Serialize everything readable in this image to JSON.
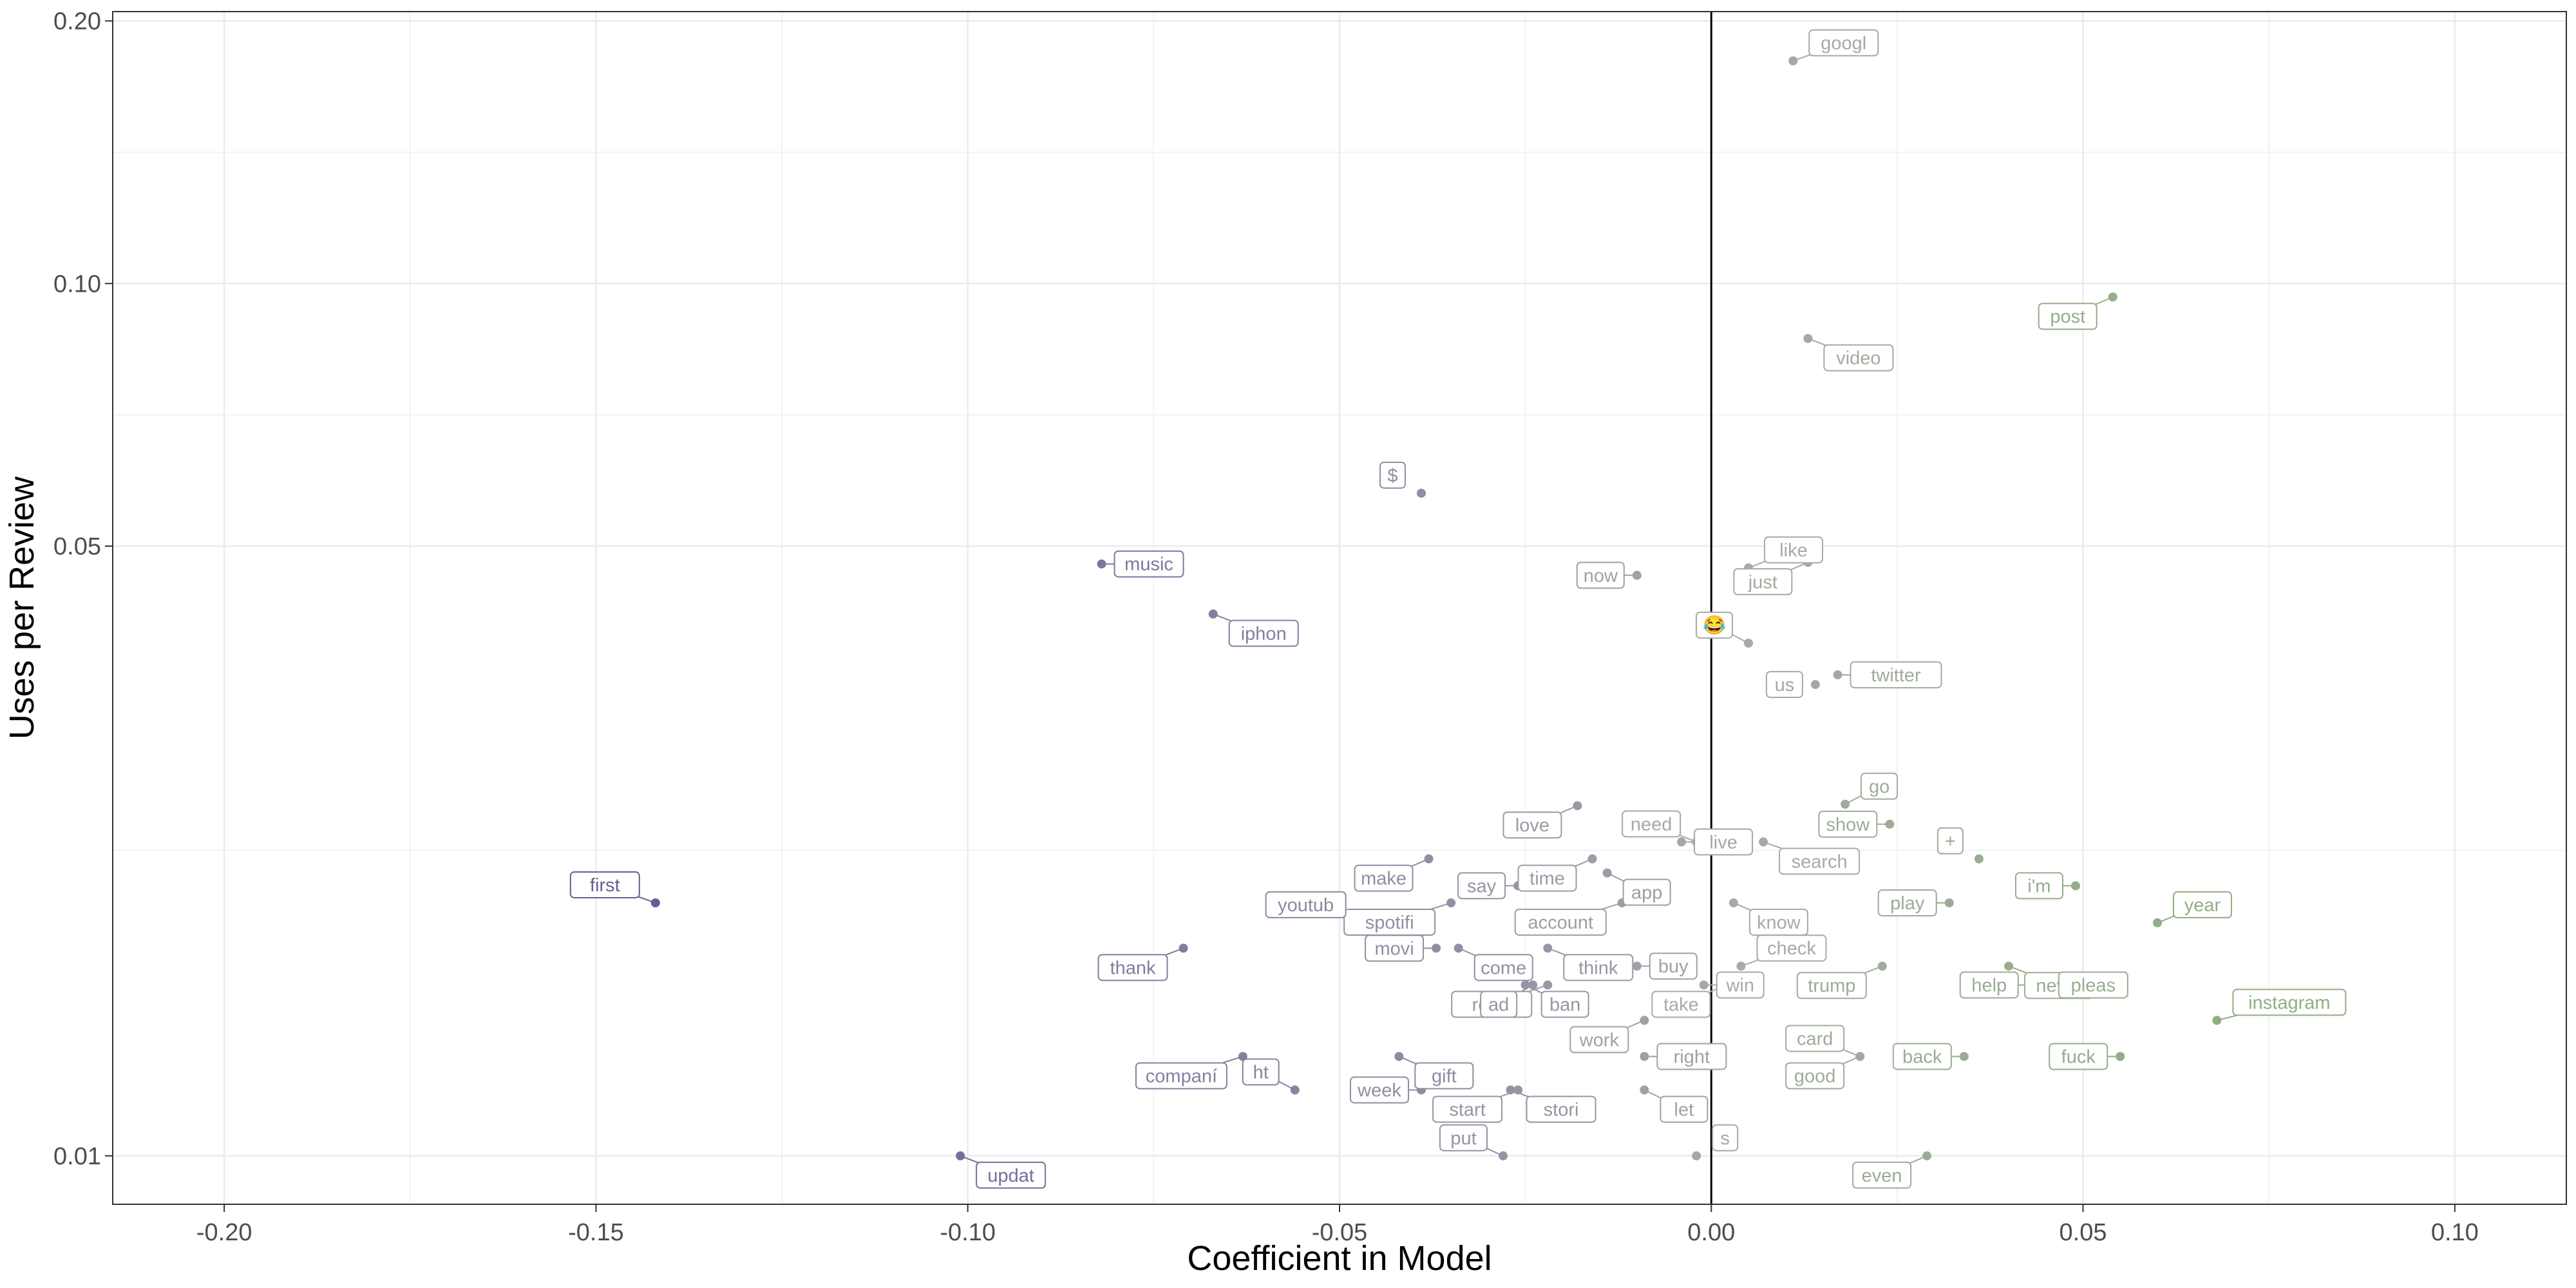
{
  "chart_data": {
    "type": "scatter",
    "title": "",
    "xlabel": "Coefficient in Model",
    "ylabel": "Uses per Review",
    "xlim": [
      -0.215,
      0.115
    ],
    "ylim": [
      0.0088,
      0.205
    ],
    "y_scale": "log",
    "grid": true,
    "legend": "none",
    "zero_line": 0,
    "x_ticks": [
      -0.2,
      -0.15,
      -0.1,
      -0.05,
      0.0,
      0.05,
      0.1
    ],
    "x_tick_labels": [
      "-0.20",
      "-0.15",
      "-0.10",
      "-0.05",
      "0.00",
      "0.05",
      "0.10"
    ],
    "y_ticks": [
      0.01,
      0.05,
      0.1,
      0.2
    ],
    "y_tick_labels": [
      "0.01",
      "0.05",
      "0.10",
      "0.20"
    ],
    "y_minor_ticks": [
      0.0224,
      0.0707,
      0.1414
    ],
    "x_minor_ticks": [
      -0.175,
      -0.125,
      -0.075,
      -0.025,
      0.025,
      0.075
    ],
    "colors": {
      "negative": "#6b5b95",
      "neutral": "#aaaaaa",
      "positive": "#8fae84",
      "zero_line": "#000000"
    },
    "points": [
      {
        "word": "googl",
        "x": 0.011,
        "y": 0.18
      },
      {
        "word": "post",
        "x": 0.054,
        "y": 0.0965
      },
      {
        "word": "video",
        "x": 0.013,
        "y": 0.0865
      },
      {
        "word": "$",
        "x": -0.039,
        "y": 0.0575
      },
      {
        "word": "music",
        "x": -0.082,
        "y": 0.0477
      },
      {
        "word": "now",
        "x": -0.01,
        "y": 0.0463
      },
      {
        "word": "like",
        "x": 0.005,
        "y": 0.0472
      },
      {
        "word": "just",
        "x": 0.013,
        "y": 0.0479
      },
      {
        "word": "iphon",
        "x": -0.067,
        "y": 0.0418
      },
      {
        "word": "😂",
        "x": 0.005,
        "y": 0.0387
      },
      {
        "word": "twitter",
        "x": 0.017,
        "y": 0.0356
      },
      {
        "word": "us",
        "x": 0.014,
        "y": 0.0347
      },
      {
        "word": "go",
        "x": 0.018,
        "y": 0.0253
      },
      {
        "word": "love",
        "x": -0.018,
        "y": 0.0252
      },
      {
        "word": "search",
        "x": 0.007,
        "y": 0.0229
      },
      {
        "word": "need",
        "x": -0.002,
        "y": 0.0229
      },
      {
        "word": "live",
        "x": -0.004,
        "y": 0.0229
      },
      {
        "word": "show",
        "x": 0.024,
        "y": 0.024
      },
      {
        "word": "time",
        "x": -0.016,
        "y": 0.0219
      },
      {
        "word": "make",
        "x": -0.038,
        "y": 0.0219
      },
      {
        "word": "app",
        "x": -0.014,
        "y": 0.0211
      },
      {
        "word": "+",
        "x": 0.036,
        "y": 0.0219
      },
      {
        "word": "say",
        "x": -0.026,
        "y": 0.0204
      },
      {
        "word": "i'm",
        "x": 0.049,
        "y": 0.0204
      },
      {
        "word": "account",
        "x": -0.012,
        "y": 0.0195
      },
      {
        "word": "spotifi",
        "x": -0.035,
        "y": 0.0195
      },
      {
        "word": "know",
        "x": 0.003,
        "y": 0.0195
      },
      {
        "word": "first",
        "x": -0.142,
        "y": 0.0195
      },
      {
        "word": "youtub",
        "x": -0.047,
        "y": 0.0185
      },
      {
        "word": "play",
        "x": 0.032,
        "y": 0.0195
      },
      {
        "word": "year",
        "x": 0.06,
        "y": 0.0185
      },
      {
        "word": "thank",
        "x": -0.071,
        "y": 0.0173
      },
      {
        "word": "come",
        "x": -0.034,
        "y": 0.0173
      },
      {
        "word": "movi",
        "x": -0.037,
        "y": 0.0173
      },
      {
        "word": "buy",
        "x": -0.01,
        "y": 0.0165
      },
      {
        "word": "think",
        "x": -0.022,
        "y": 0.0173
      },
      {
        "word": "check",
        "x": 0.004,
        "y": 0.0165
      },
      {
        "word": "trump",
        "x": 0.023,
        "y": 0.0165
      },
      {
        "word": "never",
        "x": 0.04,
        "y": 0.0165
      },
      {
        "word": "realli",
        "x": -0.022,
        "y": 0.0157
      },
      {
        "word": "win",
        "x": -0.001,
        "y": 0.0157
      },
      {
        "word": "pleas",
        "x": 0.045,
        "y": 0.0157
      },
      {
        "word": "instagram",
        "x": 0.068,
        "y": 0.0143
      },
      {
        "word": "ban",
        "x": -0.025,
        "y": 0.0157
      },
      {
        "word": "ad",
        "x": -0.024,
        "y": 0.0157
      },
      {
        "word": "take",
        "x": 0.002,
        "y": 0.0157
      },
      {
        "word": "help",
        "x": 0.043,
        "y": 0.0157
      },
      {
        "word": "back",
        "x": 0.034,
        "y": 0.013
      },
      {
        "word": "work",
        "x": -0.009,
        "y": 0.0143
      },
      {
        "word": "companí",
        "x": -0.063,
        "y": 0.013
      },
      {
        "word": "gift",
        "x": -0.042,
        "y": 0.013
      },
      {
        "word": "card",
        "x": 0.02,
        "y": 0.013
      },
      {
        "word": "right",
        "x": -0.009,
        "y": 0.013
      },
      {
        "word": "fuck",
        "x": 0.055,
        "y": 0.013
      },
      {
        "word": "good",
        "x": 0.02,
        "y": 0.013
      },
      {
        "word": "start",
        "x": -0.026,
        "y": 0.0119
      },
      {
        "word": "stori",
        "x": -0.027,
        "y": 0.0119
      },
      {
        "word": "ht",
        "x": -0.056,
        "y": 0.0119
      },
      {
        "word": "week",
        "x": -0.039,
        "y": 0.0119
      },
      {
        "word": "let",
        "x": -0.009,
        "y": 0.0119
      },
      {
        "word": "s",
        "x": -0.002,
        "y": 0.01
      },
      {
        "word": "even",
        "x": 0.029,
        "y": 0.01
      },
      {
        "word": "updat",
        "x": -0.101,
        "y": 0.01
      },
      {
        "word": "put",
        "x": -0.028,
        "y": 0.01
      }
    ]
  }
}
